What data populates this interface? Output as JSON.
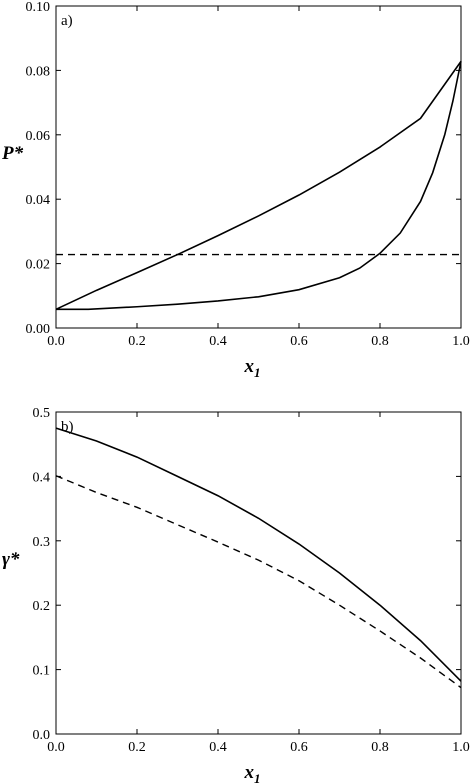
{
  "chart_data": [
    {
      "type": "line",
      "panel_label": "a)",
      "xlabel": "x",
      "xlabel_sub": "1",
      "ylabel": "P*",
      "xlim": [
        0,
        1
      ],
      "ylim": [
        0,
        0.1
      ],
      "xticks": [
        "0.0",
        "0.2",
        "0.4",
        "0.6",
        "0.8",
        "1.0"
      ],
      "yticks": [
        "0.00",
        "0.02",
        "0.04",
        "0.06",
        "0.08",
        "0.10"
      ],
      "xtick_values": [
        0,
        0.2,
        0.4,
        0.6,
        0.8,
        1.0
      ],
      "ytick_values": [
        0,
        0.02,
        0.04,
        0.06,
        0.08,
        0.1
      ],
      "series": [
        {
          "style": "solid",
          "x": [
            0,
            0.1,
            0.2,
            0.3,
            0.4,
            0.5,
            0.6,
            0.7,
            0.8,
            0.9,
            1.0
          ],
          "y": [
            0.0058,
            0.0117,
            0.0172,
            0.0228,
            0.0287,
            0.0348,
            0.0413,
            0.0484,
            0.0562,
            0.0651,
            0.0828
          ]
        },
        {
          "style": "solid",
          "x": [
            0,
            0.08,
            0.2,
            0.3,
            0.4,
            0.5,
            0.6,
            0.7,
            0.75,
            0.8,
            0.85,
            0.9,
            0.93,
            0.96,
            0.98,
            1.0
          ],
          "y": [
            0.0058,
            0.0058,
            0.0066,
            0.0074,
            0.0084,
            0.0097,
            0.0119,
            0.0156,
            0.0186,
            0.0232,
            0.0295,
            0.0393,
            0.0482,
            0.0601,
            0.0705,
            0.0828
          ]
        },
        {
          "style": "dashed",
          "x": [
            0,
            1.0
          ],
          "y": [
            0.0228,
            0.0228
          ]
        }
      ]
    },
    {
      "type": "line",
      "panel_label": "b)",
      "xlabel": "x",
      "xlabel_sub": "1",
      "ylabel": "γ*",
      "xlim": [
        0,
        1
      ],
      "ylim": [
        0,
        0.5
      ],
      "xticks": [
        "0.0",
        "0.2",
        "0.4",
        "0.6",
        "0.8",
        "1.0"
      ],
      "yticks": [
        "0.0",
        "0.1",
        "0.2",
        "0.3",
        "0.4",
        "0.5"
      ],
      "xtick_values": [
        0,
        0.2,
        0.4,
        0.6,
        0.8,
        1.0
      ],
      "ytick_values": [
        0,
        0.1,
        0.2,
        0.3,
        0.4,
        0.5
      ],
      "series": [
        {
          "style": "solid",
          "x": [
            0,
            0.1,
            0.2,
            0.3,
            0.4,
            0.5,
            0.6,
            0.7,
            0.8,
            0.9,
            1.0
          ],
          "y": [
            0.475,
            0.455,
            0.43,
            0.4,
            0.37,
            0.335,
            0.295,
            0.25,
            0.2,
            0.145,
            0.082
          ]
        },
        {
          "style": "dashed",
          "x": [
            0,
            0.1,
            0.2,
            0.3,
            0.4,
            0.5,
            0.6,
            0.7,
            0.8,
            0.9,
            1.0
          ],
          "y": [
            0.401,
            0.375,
            0.352,
            0.325,
            0.298,
            0.27,
            0.238,
            0.2,
            0.16,
            0.118,
            0.072
          ]
        }
      ]
    }
  ]
}
